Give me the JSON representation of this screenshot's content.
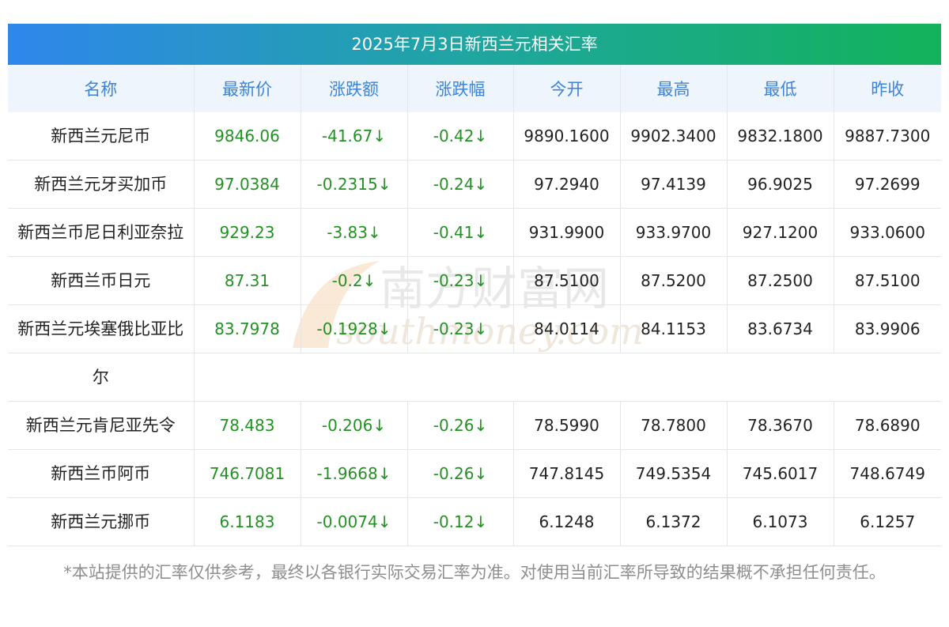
{
  "title": "2025年7月3日新西兰元相关汇率",
  "headers": [
    "名称",
    "最新价",
    "涨跌额",
    "涨跌幅",
    "今开",
    "最高",
    "最低",
    "昨收"
  ],
  "rows": [
    {
      "name": "新西兰元尼币",
      "latest": "9846.06",
      "change": "-41.67↓",
      "pct": "-0.42↓",
      "open": "9890.1600",
      "high": "9902.3400",
      "low": "9832.1800",
      "prev": "9887.7300"
    },
    {
      "name": "新西兰元牙买加币",
      "latest": "97.0384",
      "change": "-0.2315↓",
      "pct": "-0.24↓",
      "open": "97.2940",
      "high": "97.4139",
      "low": "96.9025",
      "prev": "97.2699"
    },
    {
      "name": "新西兰币尼日利亚奈拉",
      "latest": "929.23",
      "change": "-3.83↓",
      "pct": "-0.41↓",
      "open": "931.9900",
      "high": "933.9700",
      "low": "927.1200",
      "prev": "933.0600"
    },
    {
      "name": "新西兰币日元",
      "latest": "87.31",
      "change": "-0.2↓",
      "pct": "-0.23↓",
      "open": "87.5100",
      "high": "87.5200",
      "low": "87.2500",
      "prev": "87.5100"
    },
    {
      "name_line1": "新西兰元埃塞俄比亚比",
      "name_line2": "尔",
      "latest": "83.7978",
      "change": "-0.1928↓",
      "pct": "-0.23↓",
      "open": "84.0114",
      "high": "84.1153",
      "low": "83.6734",
      "prev": "83.9906"
    },
    {
      "name": "新西兰元肯尼亚先令",
      "latest": "78.483",
      "change": "-0.206↓",
      "pct": "-0.26↓",
      "open": "78.5990",
      "high": "78.7800",
      "low": "78.3670",
      "prev": "78.6890"
    },
    {
      "name": "新西兰币阿币",
      "latest": "746.7081",
      "change": "-1.9668↓",
      "pct": "-0.26↓",
      "open": "747.8145",
      "high": "749.5354",
      "low": "745.6017",
      "prev": "748.6749"
    },
    {
      "name": "新西兰元挪币",
      "latest": "6.1183",
      "change": "-0.0074↓",
      "pct": "-0.12↓",
      "open": "6.1248",
      "high": "6.1372",
      "low": "6.1073",
      "prev": "6.1257"
    }
  ],
  "footnote": "*本站提供的汇率仅供参考，最终以各银行实际交易汇率为准。对使用当前汇率所导致的结果概不承担任何责任。",
  "watermark": {
    "cn": "南方财富网",
    "en": "southmoney.com"
  },
  "colors": {
    "header_text": "#3b84d9",
    "green": "#239123",
    "title_start": "#2f86ec",
    "title_end": "#13b25a"
  }
}
